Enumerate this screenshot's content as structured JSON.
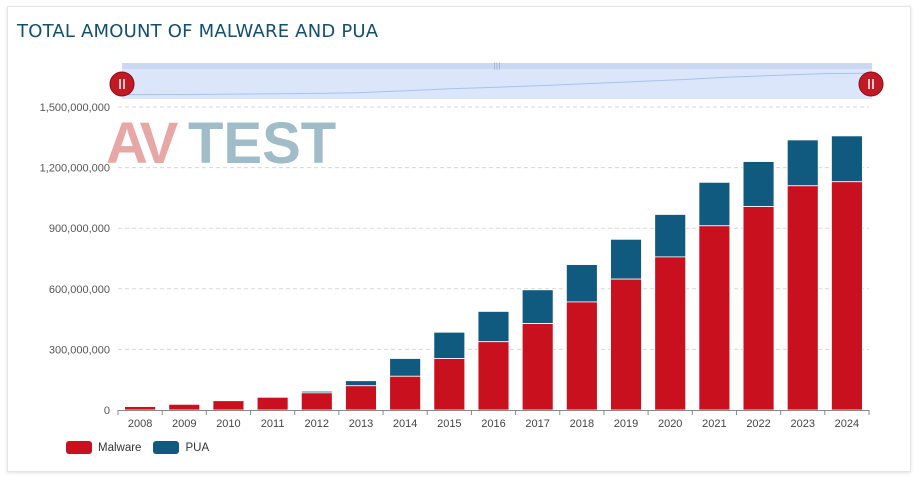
{
  "title": "TOTAL AMOUNT OF MALWARE AND PUA",
  "logo": {
    "text_a": "AV",
    "text_b": "TEST",
    "color_a": "#e8a7a7",
    "color_b": "#9fbcc8"
  },
  "colors": {
    "malware": "#c8101e",
    "pua": "#0f5a7e",
    "grid": "#d8d8d8",
    "navigator_fill": "#dce6fb",
    "navigator_handle": "#c21a24"
  },
  "legend": [
    {
      "label": "Malware",
      "color": "#c8101e"
    },
    {
      "label": "PUA",
      "color": "#0f5a7e"
    }
  ],
  "chart_data": {
    "type": "bar",
    "stacked": true,
    "categories": [
      "2008",
      "2009",
      "2010",
      "2011",
      "2012",
      "2013",
      "2014",
      "2015",
      "2016",
      "2017",
      "2018",
      "2019",
      "2020",
      "2021",
      "2022",
      "2023",
      "2024"
    ],
    "series": [
      {
        "name": "Malware",
        "values": [
          17000000,
          28000000,
          46000000,
          63000000,
          85000000,
          120000000,
          167000000,
          255000000,
          338000000,
          428000000,
          535000000,
          648000000,
          758000000,
          912000000,
          1007000000,
          1110000000,
          1130000000
        ]
      },
      {
        "name": "PUA",
        "values": [
          1000000,
          2000000,
          2000000,
          3000000,
          8000000,
          25000000,
          88000000,
          130000000,
          150000000,
          167000000,
          185000000,
          197000000,
          210000000,
          215000000,
          223000000,
          227000000,
          227000000
        ]
      }
    ],
    "ylim": [
      0,
      1500000000
    ],
    "yticks": [
      0,
      300000000,
      600000000,
      900000000,
      1200000000,
      1500000000
    ],
    "ytick_labels": [
      "0",
      "300,000,000",
      "600,000,000",
      "900,000,000",
      "1,200,000,000",
      "1,500,000,000"
    ],
    "grid": true,
    "legend_position": "bottom-left",
    "navigator": true
  }
}
